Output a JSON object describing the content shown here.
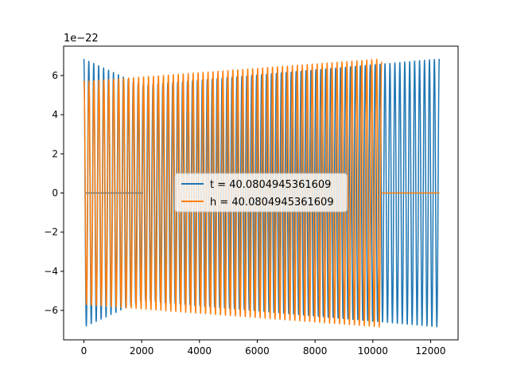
{
  "chart_data": {
    "type": "line",
    "title": "",
    "xlabel": "",
    "ylabel": "",
    "offset_text": "1e−22",
    "xlim": [
      -700,
      12950
    ],
    "ylim": [
      -7.5,
      7.5
    ],
    "x_ticks": [
      0,
      2000,
      4000,
      6000,
      8000,
      10000,
      12000
    ],
    "x_tick_labels": [
      "0",
      "2000",
      "4000",
      "6000",
      "8000",
      "10000",
      "12000"
    ],
    "y_ticks": [
      -6,
      -4,
      -2,
      0,
      2,
      4,
      6
    ],
    "y_tick_labels": [
      "−6",
      "−4",
      "−2",
      "0",
      "2",
      "4",
      "6"
    ],
    "grid": false,
    "legend_position": "center",
    "series": [
      {
        "name": "t = 40.0804945361609",
        "color": "#1f77b4",
        "start_x": 0,
        "end_x": 12300,
        "start_amplitude": 6.85,
        "end_amplitude": 6.85,
        "min_amplitude": 5.5,
        "min_amplitude_at_x": 2000,
        "cycles": 72,
        "flat_segment": [
          50,
          2050
        ]
      },
      {
        "name": "h = 40.0804945361609",
        "color": "#ff7f0e",
        "start_x": 0,
        "end_x": 10300,
        "start_amplitude": 5.7,
        "end_amplitude": 6.85,
        "cycles": 60,
        "flat_segment": [
          10300,
          12300
        ]
      }
    ]
  }
}
